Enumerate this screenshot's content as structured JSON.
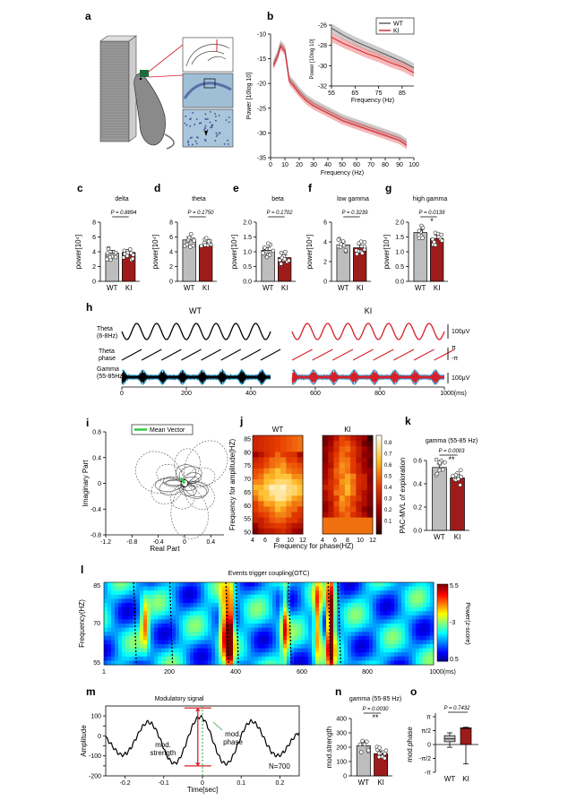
{
  "panels": {
    "a": "a",
    "b": "b",
    "c": "c",
    "d": "d",
    "e": "e",
    "f": "f",
    "g": "g",
    "h": "h",
    "i": "i",
    "j": "j",
    "k": "k",
    "l": "l",
    "m": "m",
    "n": "n",
    "o": "o"
  },
  "colors": {
    "wt": "#555555",
    "ki": "#d6202a",
    "wt_fill": "#bdbdbd",
    "ki_fill": "#9e1b1b",
    "gamma": "#29a9e0",
    "mean": "#2ecc40"
  },
  "panel_a": {
    "icons": [
      "rat-icon",
      "maze-icon",
      "brain-slice-icon"
    ]
  },
  "chart_data": [
    {
      "id": "b",
      "type": "line",
      "xlabel": "Frequency (Hz)",
      "ylabel": "Power [10log 10]",
      "xlim": [
        0,
        100
      ],
      "ylim": [
        -35,
        -10
      ],
      "xticks": [
        "0",
        "10",
        "20",
        "30",
        "40",
        "50",
        "60",
        "70",
        "80",
        "90",
        "100"
      ],
      "yticks": [
        "-10",
        "-15",
        "-20",
        "-25",
        "-30",
        "-35"
      ],
      "legend": [
        "WT",
        "KI"
      ],
      "series": [
        {
          "name": "WT",
          "x": [
            2,
            5,
            7,
            10,
            13,
            16,
            20,
            25,
            30,
            40,
            50,
            60,
            70,
            80,
            90,
            95
          ],
          "y": [
            -16,
            -14,
            -12,
            -13,
            -19,
            -20,
            -21.5,
            -23,
            -24,
            -25.5,
            -27,
            -28,
            -29,
            -30,
            -31,
            -32
          ]
        },
        {
          "name": "KI",
          "x": [
            2,
            5,
            7,
            10,
            13,
            16,
            20,
            25,
            30,
            40,
            50,
            60,
            70,
            80,
            90,
            95
          ],
          "y": [
            -16.5,
            -14.5,
            -12.5,
            -13.5,
            -19.5,
            -20.5,
            -22,
            -23.5,
            -24.5,
            -26,
            -27.5,
            -28.5,
            -29.5,
            -30.5,
            -31.5,
            -32.5
          ]
        }
      ],
      "inset": {
        "xlabel": "Frequency (Hz)",
        "ylabel": "Power [10log 10]",
        "xlim": [
          55,
          90
        ],
        "ylim": [
          -32,
          -26
        ],
        "xticks": [
          "55",
          "65",
          "75",
          "85"
        ],
        "yticks": [
          "-26",
          "-28",
          "-30",
          "-32"
        ],
        "series": [
          {
            "name": "WT",
            "x": [
              55,
              60,
              65,
              70,
              75,
              80,
              85,
              90
            ],
            "y": [
              -26.3,
              -27,
              -27.6,
              -28.1,
              -28.6,
              -29.1,
              -29.6,
              -30.2
            ]
          },
          {
            "name": "KI",
            "x": [
              55,
              60,
              65,
              70,
              75,
              80,
              85,
              90
            ],
            "y": [
              -27.2,
              -27.8,
              -28.3,
              -28.8,
              -29.2,
              -29.7,
              -30.1,
              -30.7
            ]
          }
        ]
      }
    },
    {
      "id": "c",
      "type": "bar",
      "title": "delta",
      "ylabel": "power[10⁴]",
      "categories": [
        "WT",
        "KI"
      ],
      "values": [
        3.8,
        3.9
      ],
      "ylim": [
        0,
        8
      ],
      "yticks": [
        "0",
        "2",
        "4",
        "6",
        "8"
      ],
      "p": "P = 0.8894",
      "star": ""
    },
    {
      "id": "d",
      "type": "bar",
      "title": "theta",
      "ylabel": "power[10⁴]",
      "categories": [
        "WT",
        "KI"
      ],
      "values": [
        5.6,
        4.9
      ],
      "ylim": [
        0,
        8
      ],
      "yticks": [
        "0",
        "2",
        "4",
        "6",
        "8"
      ],
      "p": "P = 0.1750",
      "star": ""
    },
    {
      "id": "e",
      "type": "bar",
      "title": "beta",
      "ylabel": "power[10⁴]",
      "categories": [
        "WT",
        "KI"
      ],
      "values": [
        1.05,
        0.8
      ],
      "ylim": [
        0,
        2
      ],
      "yticks": [
        "0.0",
        "0.5",
        "1.0",
        "1.5",
        "2.0"
      ],
      "p": "P = 0.1702",
      "star": ""
    },
    {
      "id": "f",
      "type": "bar",
      "title": "low gamma",
      "ylabel": "power[10⁴]",
      "categories": [
        "WT",
        "KI"
      ],
      "values": [
        3.7,
        3.4
      ],
      "ylim": [
        0,
        6
      ],
      "yticks": [
        "0",
        "2",
        "4",
        "6"
      ],
      "p": "P = 0.3239",
      "star": ""
    },
    {
      "id": "g",
      "type": "bar",
      "title": "high gamma",
      "ylabel": "power[10⁴]",
      "categories": [
        "WT",
        "KI"
      ],
      "values": [
        1.65,
        1.45
      ],
      "ylim": [
        0,
        2
      ],
      "yticks": [
        "0.0",
        "0.5",
        "1.0",
        "1.5",
        "2.0"
      ],
      "p": "P = 0.0139",
      "star": "*"
    },
    {
      "id": "h",
      "type": "line",
      "groups": [
        "WT",
        "KI"
      ],
      "rows": [
        "Theta\n(6-8Hz)",
        "Theta\nphase",
        "Gamma\n(55-85Hz)"
      ],
      "scale": [
        "100μV",
        "π",
        "-π",
        "100μV"
      ],
      "xticks": [
        "0",
        "200",
        "400",
        "600",
        "800",
        "1000(ms)"
      ]
    },
    {
      "id": "i",
      "type": "scatter",
      "xlabel": "Real Part",
      "ylabel": "Imaginary Part",
      "legend": [
        "Mean Vector"
      ],
      "xlim": [
        -1.2,
        0.6
      ],
      "ylim": [
        -0.8,
        0.8
      ],
      "xticks": [
        "-1.2",
        "-0.8",
        "-0.4",
        "0",
        "0.4"
      ],
      "yticks": [
        "0.8",
        "0.4",
        "0",
        "-0.4",
        "-0.8"
      ]
    },
    {
      "id": "j",
      "type": "heatmap",
      "xlabel": "Frequency for phase(HZ)",
      "ylabel": "Frequency for amplitude(HZ)",
      "groups": [
        "WT",
        "KI"
      ],
      "xticks": [
        "4",
        "6",
        "8",
        "10",
        "12"
      ],
      "yticks": [
        "85",
        "80",
        "75",
        "70",
        "65",
        "60",
        "55",
        "50"
      ],
      "cbar": [
        "0.8",
        "0.7",
        "0.6",
        "0.5",
        "0.4",
        "0.3",
        "0.2",
        "0.1"
      ]
    },
    {
      "id": "k",
      "type": "bar",
      "title": "gamma (55-85 Hz)",
      "ylabel": "PAC-MVL of exploration",
      "categories": [
        "WT",
        "KI"
      ],
      "values": [
        0.54,
        0.45
      ],
      "ylim": [
        0,
        0.6
      ],
      "yticks": [
        "0.0",
        "0.2",
        "0.4",
        "0.6"
      ],
      "p": "P = 0.0003",
      "star": "**"
    },
    {
      "id": "l",
      "type": "heatmap",
      "title": "Events trigger coupling(OTC)",
      "ylabel": "Frequency(HZ)",
      "xticks": [
        "1",
        "200",
        "400",
        "600",
        "800",
        "1000(ms)"
      ],
      "yticks": [
        "85",
        "70",
        "55"
      ],
      "cbar_label": "Power(z-score)",
      "cbar": [
        "5.5",
        "3",
        "0.5"
      ]
    },
    {
      "id": "m",
      "type": "line",
      "title": "Modulatory signal",
      "xlabel": "Time[sec]",
      "ylabel": "Amplitude",
      "xlim": [
        -0.25,
        0.25
      ],
      "ylim": [
        -200,
        150
      ],
      "xticks": [
        "-0.2",
        "-0.1",
        "0",
        "0.1",
        "0.2"
      ],
      "yticks": [
        "100",
        "50",
        "0",
        "-50",
        "-100",
        "-150",
        "-200"
      ],
      "annotations": [
        "mod.\nstrength",
        "mod.\nphase",
        "N=700"
      ]
    },
    {
      "id": "n",
      "type": "bar",
      "title": "gamma (55-85 Hz)",
      "ylabel": "mod.strength",
      "categories": [
        "WT",
        "KI"
      ],
      "values": [
        210,
        155
      ],
      "ylim": [
        0,
        400
      ],
      "yticks": [
        "0",
        "100",
        "200",
        "300",
        "400"
      ],
      "p": "P = 0.0030",
      "star": "**"
    },
    {
      "id": "o",
      "type": "box",
      "ylabel": "mod.phase",
      "categories": [
        "WT",
        "KI"
      ],
      "p": "P = 0.7432",
      "yticks": [
        "π",
        "π/2",
        "0",
        "-π/2",
        "-π"
      ]
    }
  ]
}
